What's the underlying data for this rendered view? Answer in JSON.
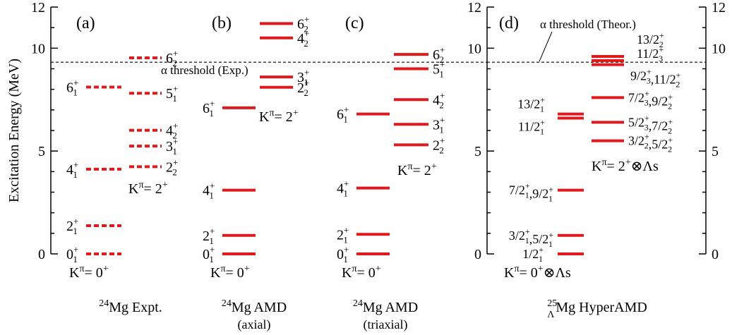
{
  "chart_data": {
    "type": "level-scheme",
    "ylabel": "Excitation Energy (MeV)",
    "ylim": [
      0,
      12
    ],
    "yticks": [
      0,
      5,
      10,
      12
    ],
    "colors": {
      "level": "#e0191c",
      "axis": "#000000",
      "threshold": "#000000"
    },
    "panels": [
      {
        "id": "a",
        "letter": "(a)",
        "title_pre": "24",
        "title_sup": "",
        "title_main": "Mg Expt.",
        "title_sub2": "",
        "style": "dashed",
        "threshold": {
          "value": 9.32,
          "label": "α threshold (Exp.)"
        },
        "bands": [
          {
            "label_html": "K<tspan dy='-8' font-size='14'>π</tspan><tspan dy='8'>= 0</tspan><tspan dy='-8' font-size='14'>+</tspan>",
            "label_plain": "Kπ= 0+",
            "levels": [
              {
                "E": 0.0,
                "j": "0",
                "sub": "1",
                "sup": "+"
              },
              {
                "E": 1.37,
                "j": "2",
                "sub": "1",
                "sup": "+"
              },
              {
                "E": 4.12,
                "j": "4",
                "sub": "1",
                "sup": "+"
              },
              {
                "E": 8.11,
                "j": "6",
                "sub": "1",
                "sup": "+"
              }
            ]
          },
          {
            "label_plain": "Kπ= 2+",
            "levels": [
              {
                "E": 4.24,
                "j": "2",
                "sub": "2",
                "sup": "+"
              },
              {
                "E": 5.24,
                "j": "3",
                "sub": "1",
                "sup": "+"
              },
              {
                "E": 6.01,
                "j": "4",
                "sub": "2",
                "sup": "+"
              },
              {
                "E": 7.81,
                "j": "5",
                "sub": "1",
                "sup": "+"
              },
              {
                "E": 9.53,
                "j": "6",
                "sub": "2",
                "sup": "+"
              }
            ]
          }
        ]
      },
      {
        "id": "b",
        "letter": "(b)",
        "title_pre": "24",
        "title_main": "Mg AMD",
        "title_sub2": "(axial)",
        "style": "solid",
        "bands": [
          {
            "label_plain": "Kπ= 0+",
            "levels": [
              {
                "E": 0.0,
                "j": "0",
                "sub": "1",
                "sup": "+"
              },
              {
                "E": 0.9,
                "j": "2",
                "sub": "1",
                "sup": "+"
              },
              {
                "E": 3.1,
                "j": "4",
                "sub": "1",
                "sup": "+"
              },
              {
                "E": 7.1,
                "j": "6",
                "sub": "1",
                "sup": "+"
              }
            ]
          },
          {
            "label_plain": "Kπ= 2+",
            "levels": [
              {
                "E": 8.1,
                "j": "2",
                "sub": "2",
                "sup": "+"
              },
              {
                "E": 8.6,
                "j": "3",
                "sub": "1",
                "sup": "+"
              },
              {
                "E": 10.5,
                "j": "4",
                "sub": "2",
                "sup": "+"
              },
              {
                "E": 11.2,
                "j": "6",
                "sub": "2",
                "sup": "+"
              }
            ]
          }
        ]
      },
      {
        "id": "c",
        "letter": "(c)",
        "title_pre": "24",
        "title_main": "Mg AMD",
        "title_sub2": "(triaxial)",
        "style": "solid",
        "bands": [
          {
            "label_plain": "Kπ= 0+",
            "levels": [
              {
                "E": 0.0,
                "j": "0",
                "sub": "1",
                "sup": "+"
              },
              {
                "E": 0.95,
                "j": "2",
                "sub": "1",
                "sup": "+"
              },
              {
                "E": 3.2,
                "j": "4",
                "sub": "1",
                "sup": "+"
              },
              {
                "E": 6.8,
                "j": "6",
                "sub": "1",
                "sup": "+"
              }
            ]
          },
          {
            "label_plain": "Kπ= 2+",
            "levels": [
              {
                "E": 5.3,
                "j": "2",
                "sub": "2",
                "sup": "+"
              },
              {
                "E": 6.3,
                "j": "3",
                "sub": "1",
                "sup": "+"
              },
              {
                "E": 7.5,
                "j": "4",
                "sub": "2",
                "sup": "+"
              },
              {
                "E": 9.0,
                "j": "5",
                "sub": "1",
                "sup": "+"
              },
              {
                "E": 9.7,
                "j": "6",
                "sub": "2",
                "sup": "+"
              }
            ]
          }
        ]
      },
      {
        "id": "d",
        "letter": "(d)",
        "title_pre": "25",
        "title_sub": "Λ",
        "title_main": "Mg HyperAMD",
        "title_sub2": "",
        "style": "solid",
        "threshold": {
          "value": 9.32,
          "label": "α threshold (Theor.)"
        },
        "bands": [
          {
            "label_plain": "Kπ= 0+⊗Λs",
            "levels": [
              {
                "E": 0.0,
                "text": "1/2",
                "sub": "1",
                "sup": "+"
              },
              {
                "E": 0.9,
                "text": "3/2₁⁺,5/2₁⁺"
              },
              {
                "E": 3.1,
                "text": "7/2₁⁺,9/2₁⁺"
              },
              {
                "E": 6.6,
                "text": "11/2₁⁺"
              },
              {
                "E": 6.8,
                "text": "13/2₁⁺"
              }
            ]
          },
          {
            "label_plain": "Kπ= 2+⊗Λs",
            "levels": [
              {
                "E": 5.5,
                "text": "3/2₂⁺,5/2₂⁺"
              },
              {
                "E": 6.4,
                "text": "5/2₃⁺,7/2₂⁺"
              },
              {
                "E": 7.6,
                "text": "7/2₃⁺,9/2₂⁺"
              },
              {
                "E": 9.2,
                "text": "9/2₃⁺,11/2₂⁺"
              },
              {
                "E": 9.4,
                "text": "11/2₃⁺"
              },
              {
                "E": 9.6,
                "text": "13/2₂⁺"
              }
            ]
          }
        ]
      }
    ]
  }
}
